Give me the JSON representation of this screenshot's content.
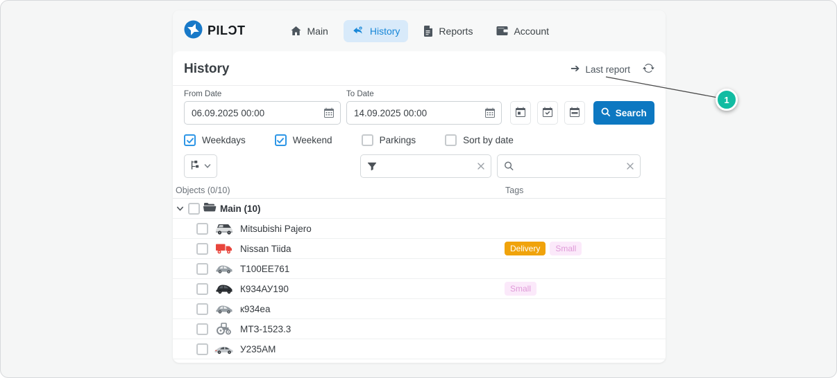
{
  "brand": {
    "text": "PILƆT",
    "logo_icon": "pilot-logo-icon"
  },
  "nav": {
    "tabs": [
      {
        "id": "main",
        "label": "Main",
        "icon": "home",
        "active": false
      },
      {
        "id": "history",
        "label": "History",
        "icon": "history",
        "active": true
      },
      {
        "id": "reports",
        "label": "Reports",
        "icon": "reports",
        "active": false
      },
      {
        "id": "account",
        "label": "Account",
        "icon": "account",
        "active": false
      }
    ]
  },
  "header": {
    "title": "History",
    "last_report_label": "Last report",
    "arrow_icon": "arrow-right-icon",
    "refresh_icon": "refresh-icon"
  },
  "filters": {
    "from": {
      "label": "From Date",
      "value": "06.09.2025 00:00",
      "icon": "calendar-icon"
    },
    "to": {
      "label": "To Date",
      "value": "14.09.2025 00:00",
      "icon": "calendar-icon"
    },
    "quick_buttons": [
      {
        "icon": "calendar-day"
      },
      {
        "icon": "calendar-check"
      },
      {
        "icon": "calendar-range"
      }
    ],
    "search_button": {
      "label": "Search",
      "icon": "search-icon"
    },
    "checkboxes": [
      {
        "label": "Weekdays",
        "checked": true
      },
      {
        "label": "Weekend",
        "checked": true
      },
      {
        "label": "Parkings",
        "checked": false
      },
      {
        "label": "Sort by date",
        "checked": false
      }
    ]
  },
  "toolbar": {
    "tree_button": {
      "icon": "tree-icon",
      "chevron": "chevron-down-icon"
    },
    "filter_input": {
      "value": "",
      "placeholder": "",
      "icon": "funnel-icon",
      "clear_icon": "clear-x-icon"
    },
    "search_input": {
      "value": "",
      "placeholder": "",
      "icon": "search-icon",
      "clear_icon": "clear-x-icon"
    }
  },
  "table": {
    "objects_header": "Objects (0/10)",
    "tags_header": "Tags",
    "group": {
      "label": "Main (10)",
      "icon": "folder-icon",
      "expanded": true,
      "checked": false
    },
    "rows": [
      {
        "name": "Mitsubishi Pajero",
        "icon": "suv",
        "checked": false,
        "tags": []
      },
      {
        "name": "Nissan Tiida",
        "icon": "truck",
        "checked": false,
        "tags": [
          {
            "label": "Delivery",
            "type": "delivery"
          },
          {
            "label": "Small",
            "type": "small"
          }
        ]
      },
      {
        "name": "T100EE761",
        "icon": "car",
        "checked": false,
        "tags": []
      },
      {
        "name": "К934АУ190",
        "icon": "minivan",
        "checked": false,
        "tags": [
          {
            "label": "Small",
            "type": "small"
          }
        ]
      },
      {
        "name": "к934еа",
        "icon": "car",
        "checked": false,
        "tags": []
      },
      {
        "name": "МТЗ-1523.3",
        "icon": "tractor",
        "checked": false,
        "tags": []
      },
      {
        "name": "У235АМ",
        "icon": "sedan",
        "checked": false,
        "tags": []
      }
    ]
  },
  "callout": {
    "number": "1"
  },
  "colors": {
    "accent_blue": "#0d78c1",
    "tab_active_bg": "#d8eafa",
    "tab_active_text": "#1787d8",
    "tag_delivery_bg": "#f0a30b",
    "tag_delivery_text": "#ffffff",
    "tag_small_bg": "#fbe9fa",
    "tag_small_text": "#df9ad8",
    "truck_red": "#e8453c",
    "callout_teal": "#12bca2"
  }
}
